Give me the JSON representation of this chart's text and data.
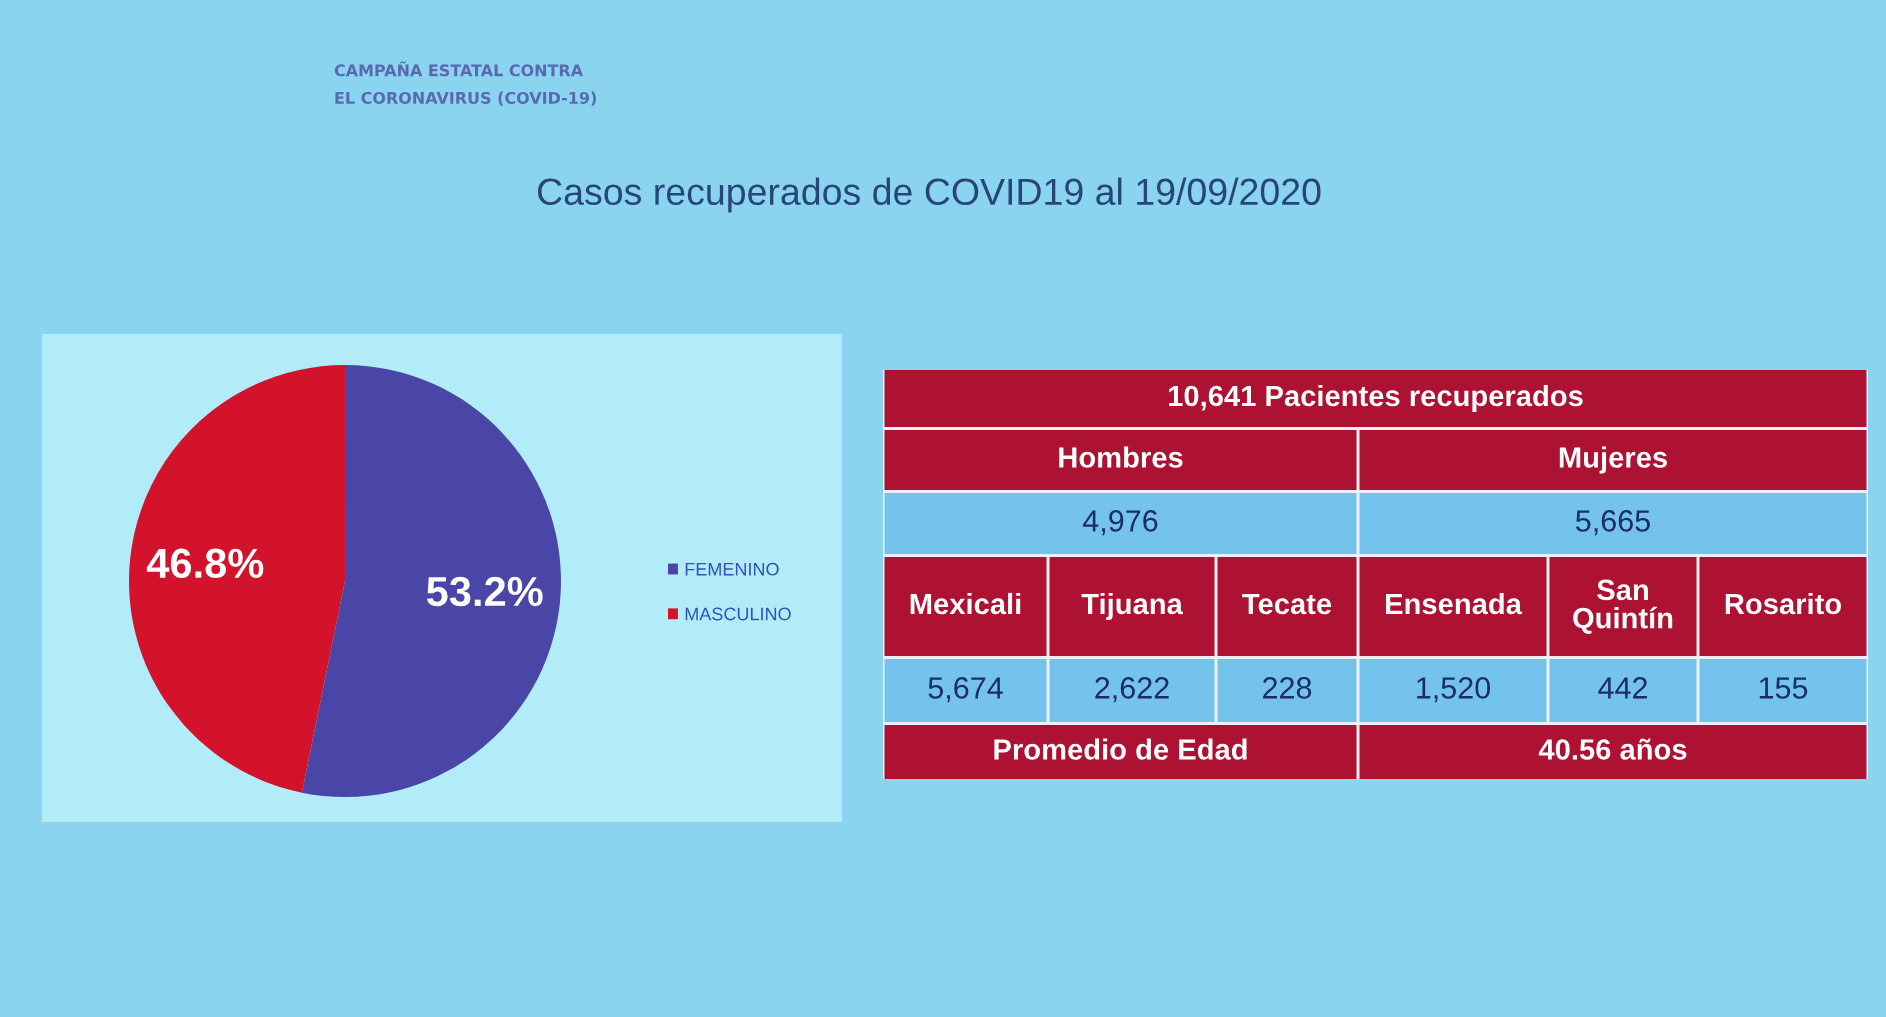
{
  "chart_data": [
    {
      "type": "pie",
      "title": "Casos recuperados de COVID19 al 19/09/2020",
      "categories": [
        "FEMENINO",
        "MASCULINO"
      ],
      "values": [
        53.2,
        46.8
      ],
      "colors": [
        "#4a46a8",
        "#d3132c"
      ],
      "value_labels": [
        "53.2%",
        "46.8%"
      ],
      "legend": "right",
      "annotations": [
        "CAMPAÑA ESTATAL CONTRA\nEL CORONAVIRUS (COVID-19)"
      ]
    },
    {
      "type": "other",
      "title": "10,641 Pacientes recuperados",
      "categories": [
        "Mexicali",
        "Tijuana",
        "Tecate",
        "Ensenada",
        "San Quintín",
        "Rosarito"
      ],
      "values": [
        5674,
        2622,
        228,
        1520,
        442,
        155
      ],
      "value_labels": [
        "5,674",
        "2,622",
        "228",
        "1,520",
        "442",
        "155"
      ],
      "annotations": [
        "Hombres",
        "Mujeres",
        "4,976",
        "5,665",
        "Promedio de Edad",
        "40.56 años"
      ]
    }
  ]
}
